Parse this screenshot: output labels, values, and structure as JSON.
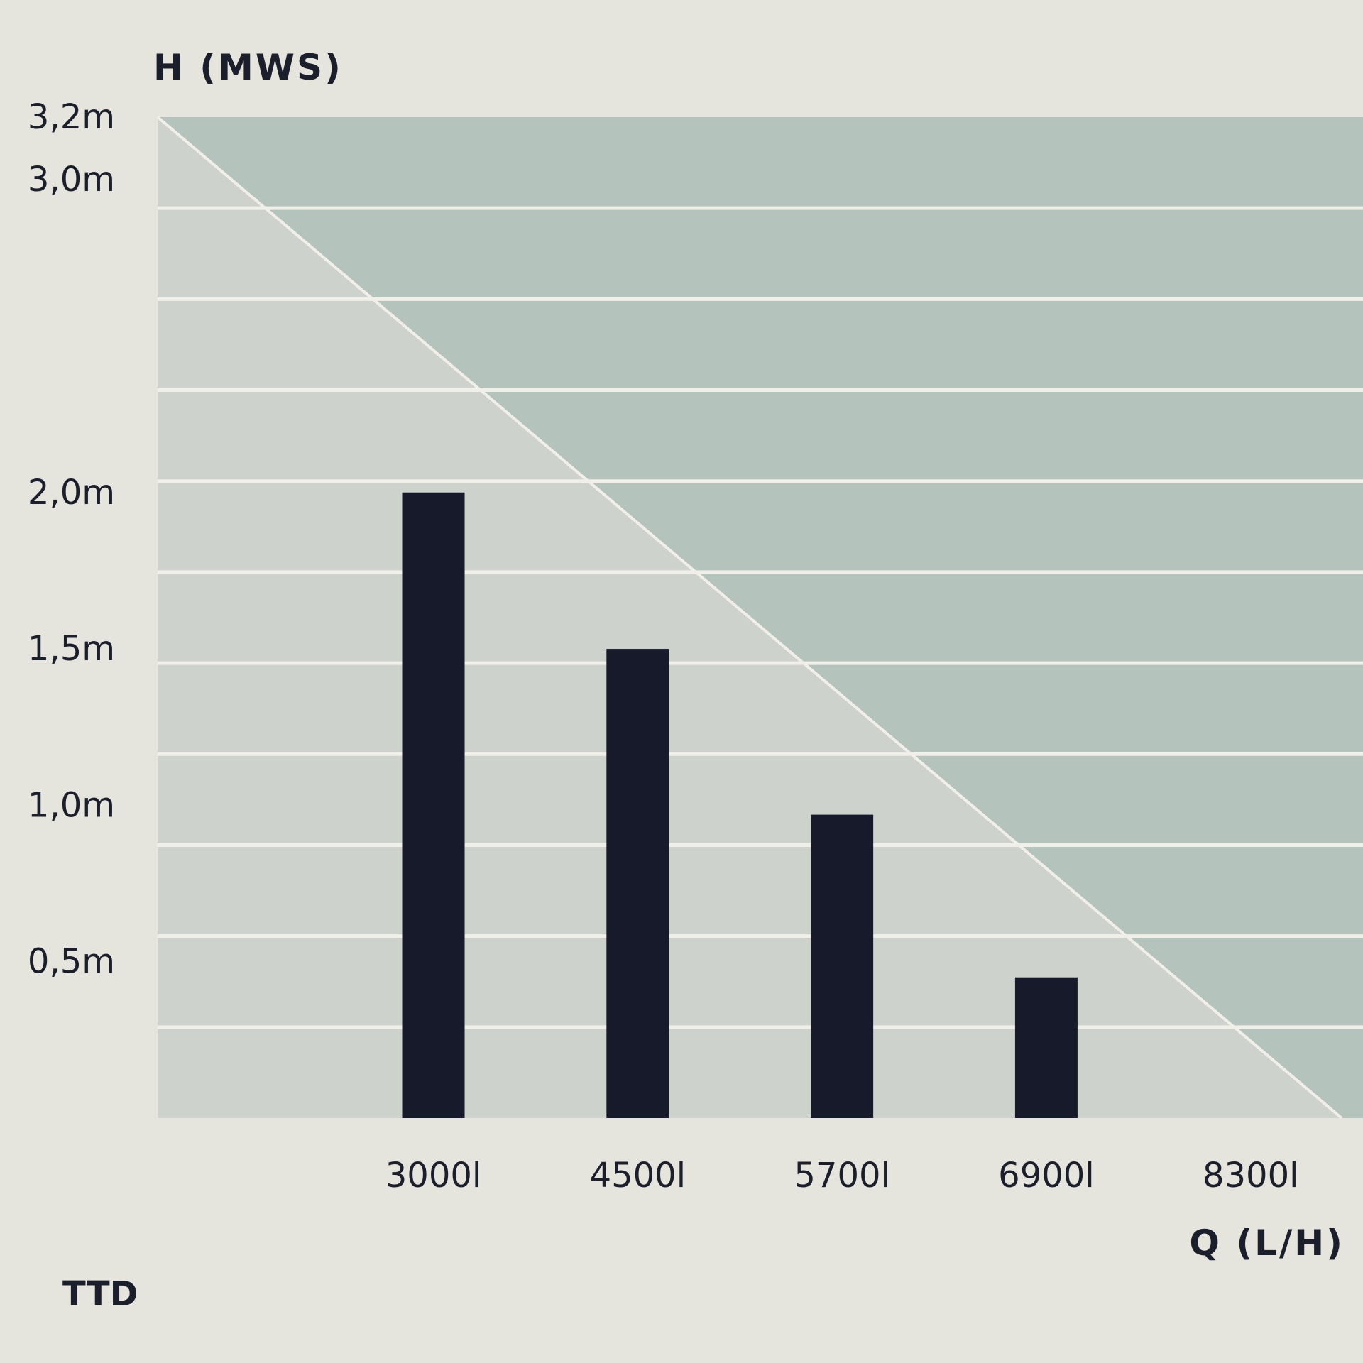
{
  "chart_data": {
    "type": "bar",
    "title": "",
    "ylabel": "H (MWS)",
    "xlabel": "Q (L/H)",
    "ylim": [
      0,
      3.2
    ],
    "y_ticks": [
      {
        "value": 3.2,
        "label": "3,2m"
      },
      {
        "value": 3.0,
        "label": "3,0m"
      },
      {
        "value": 2.0,
        "label": "2,0m"
      },
      {
        "value": 1.5,
        "label": "1,5m"
      },
      {
        "value": 1.0,
        "label": "1,0m"
      },
      {
        "value": 0.5,
        "label": "0,5m"
      }
    ],
    "categories": [
      "3000l",
      "4500l",
      "5700l",
      "6900l",
      "8300l"
    ],
    "values": [
      2.0,
      1.5,
      0.97,
      0.45,
      null
    ],
    "grid": true,
    "colors": {
      "bar": "#161a2b",
      "plot_light": "#cdd2cc",
      "plot_dark": "#b5c3bd",
      "gridline": "#f0efe8",
      "page": "#e6e5dd",
      "text": "#1b1f2c"
    }
  },
  "footer": {
    "code": "TTD"
  }
}
